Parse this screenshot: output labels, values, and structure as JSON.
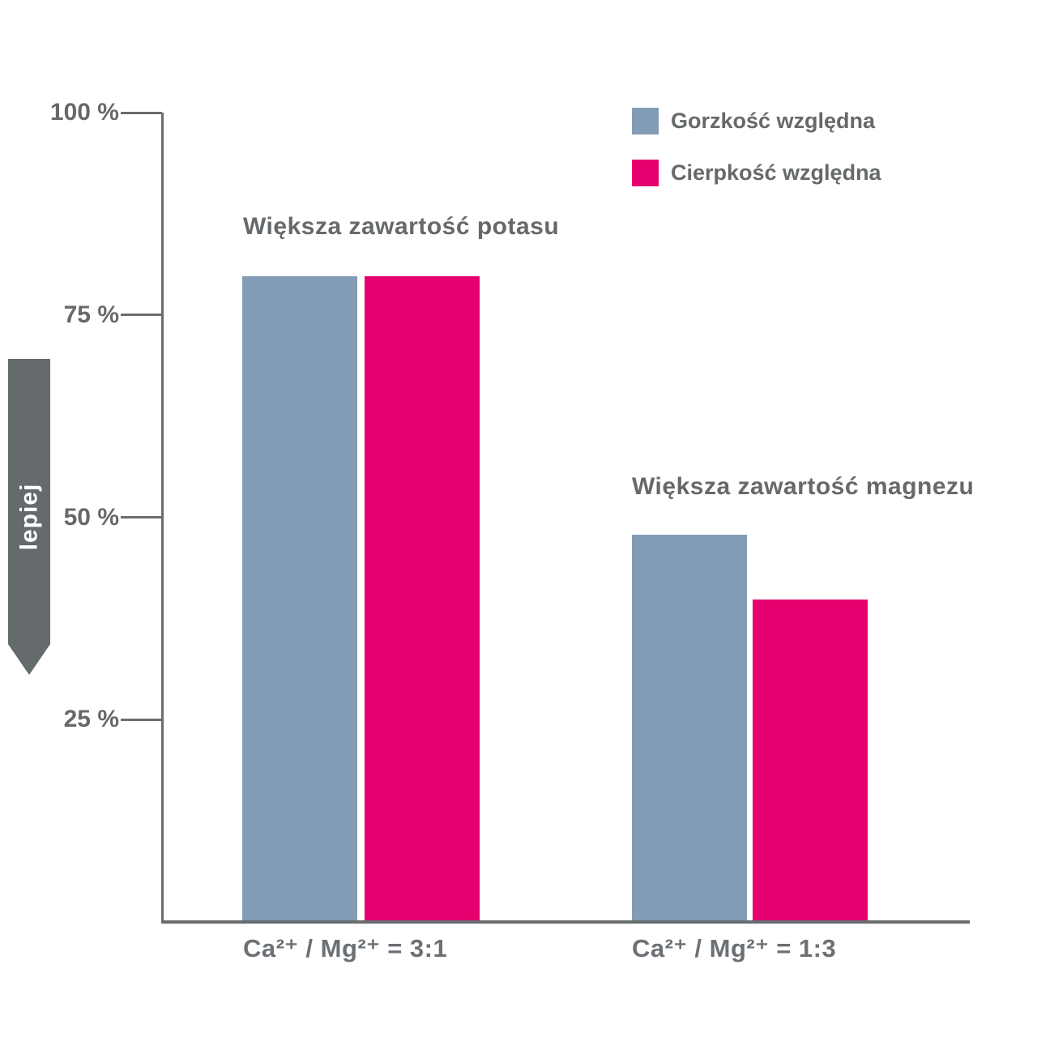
{
  "chart_data": {
    "type": "bar",
    "title": "",
    "categories": [
      "Ca²⁺ / Mg²⁺ = 3:1",
      "Ca²⁺ / Mg²⁺ = 1:3"
    ],
    "series": [
      {
        "name": "Gorzkość względna",
        "color": "#829CB6",
        "values": [
          80,
          48
        ]
      },
      {
        "name": "Cierpkość względna",
        "color": "#E6006F",
        "values": [
          80,
          40
        ]
      }
    ],
    "group_annotations": [
      "Większa zawartość potasu",
      "Większa zawartość magnezu"
    ],
    "yticks": [
      {
        "label": "100 %",
        "value": 100
      },
      {
        "label": "75 %",
        "value": 75
      },
      {
        "label": "50 %",
        "value": 50
      },
      {
        "label": "25 %",
        "value": 25
      }
    ],
    "ylim": [
      0,
      100
    ],
    "y_unit": "%",
    "grid": false,
    "legend_position": "top-right",
    "better_direction_label": "lepiej",
    "axis_color": "#696D6F",
    "text_color": "#66696B",
    "arrow_color": "#656A6C"
  }
}
